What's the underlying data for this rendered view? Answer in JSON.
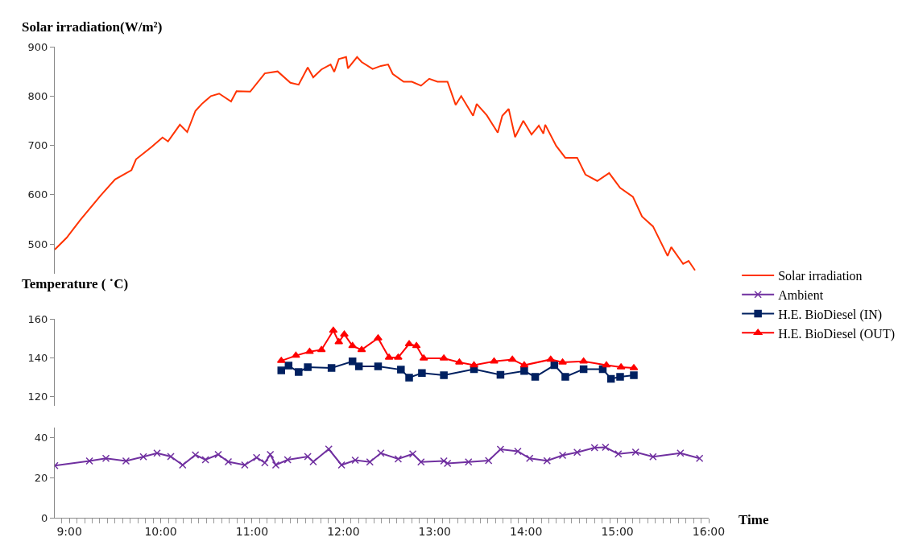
{
  "chart_data": [
    {
      "type": "line",
      "ylabel": "Solar irradiation(W/m²)",
      "xlim": [
        8.84,
        16
      ],
      "ylim": [
        440,
        900
      ],
      "yticks": [
        500,
        600,
        700,
        800,
        900
      ],
      "tick_labels": "y",
      "legend": "right",
      "series": [
        {
          "name": "Solar irradiation",
          "color": "#ff3300",
          "marker": "none",
          "x": [
            8.84,
            8.97,
            9.12,
            9.34,
            9.5,
            9.68,
            9.73,
            9.9,
            10.02,
            10.08,
            10.21,
            10.29,
            10.38,
            10.45,
            10.55,
            10.64,
            10.77,
            10.83,
            10.98,
            11.14,
            11.28,
            11.42,
            11.51,
            11.61,
            11.67,
            11.76,
            11.86,
            11.9,
            11.95,
            12.03,
            12.05,
            12.15,
            12.2,
            12.32,
            12.41,
            12.49,
            12.54,
            12.66,
            12.75,
            12.85,
            12.94,
            13.03,
            13.14,
            13.23,
            13.29,
            13.42,
            13.46,
            13.57,
            13.69,
            13.74,
            13.81,
            13.88,
            13.97,
            14.06,
            14.14,
            14.19,
            14.21,
            14.33,
            14.43,
            14.56,
            14.65,
            14.78,
            14.91,
            15.03,
            15.17,
            15.27,
            15.39,
            15.55,
            15.59,
            15.72,
            15.78,
            15.85
          ],
          "values": [
            489,
            513,
            549,
            598,
            631,
            650,
            672,
            697,
            716,
            708,
            742,
            727,
            770,
            784,
            800,
            805,
            789,
            810,
            809,
            846,
            850,
            827,
            823,
            858,
            838,
            854,
            864,
            849,
            875,
            879,
            856,
            879,
            869,
            855,
            861,
            864,
            845,
            829,
            829,
            821,
            835,
            829,
            829,
            782,
            800,
            760,
            784,
            761,
            726,
            760,
            774,
            717,
            750,
            722,
            740,
            724,
            742,
            699,
            675,
            675,
            641,
            628,
            644,
            614,
            596,
            556,
            536,
            476,
            494,
            460,
            466,
            447
          ]
        }
      ]
    },
    {
      "type": "line",
      "ylabel": "Temperature ( ˙C)",
      "xlim": [
        8.84,
        16
      ],
      "ylim": [
        115,
        160
      ],
      "yticks": [
        120,
        140,
        160
      ],
      "tick_labels": "y",
      "legend": "right",
      "series": [
        {
          "name": "H.E. BioDiesel (IN)",
          "color": "#002060",
          "marker": "square",
          "x": [
            11.32,
            11.4,
            11.51,
            11.61,
            11.87,
            12.1,
            12.17,
            12.38,
            12.63,
            12.72,
            12.86,
            13.1,
            13.43,
            13.72,
            13.98,
            14.1,
            14.31,
            14.43,
            14.63,
            14.84,
            14.93,
            15.03,
            15.18
          ],
          "values": [
            133.3,
            135.8,
            132.5,
            135,
            134.6,
            138,
            135.4,
            135.4,
            133.7,
            129.6,
            132,
            130.8,
            134,
            131,
            133,
            130,
            136,
            130,
            134,
            134,
            129,
            130,
            130.8
          ]
        },
        {
          "name": "H.E. BioDiesel (OUT)",
          "color": "#ff0000",
          "marker": "triangle",
          "x": [
            11.32,
            11.48,
            11.63,
            11.76,
            11.89,
            11.95,
            12.01,
            12.1,
            12.2,
            12.38,
            12.5,
            12.6,
            12.72,
            12.8,
            12.88,
            13.1,
            13.27,
            13.43,
            13.65,
            13.85,
            13.98,
            14.27,
            14.4,
            14.63,
            14.88,
            15.04,
            15.18
          ],
          "values": [
            138.3,
            141,
            143,
            144,
            154,
            148,
            152,
            146,
            144,
            150,
            140,
            140,
            147,
            146,
            139.6,
            139.6,
            137.5,
            136,
            138,
            139,
            136,
            139,
            137.5,
            138,
            136,
            135,
            134.6
          ]
        }
      ]
    },
    {
      "type": "line",
      "xlabel": "Time",
      "xlim": [
        8.84,
        16
      ],
      "xticks": [
        {
          "value": 9,
          "label": "9:00"
        },
        {
          "value": 10,
          "label": "10:00"
        },
        {
          "value": 11,
          "label": "11:00"
        },
        {
          "value": 12,
          "label": "12:00"
        },
        {
          "value": 13,
          "label": "13:00"
        },
        {
          "value": 14,
          "label": "14:00"
        },
        {
          "value": 15,
          "label": "15:00"
        },
        {
          "value": 16,
          "label": "16:00"
        }
      ],
      "ylim": [
        0,
        45
      ],
      "yticks": [
        0,
        20,
        40
      ],
      "legend": "right",
      "series": [
        {
          "name": "Ambient",
          "color": "#7030a0",
          "marker": "cross",
          "x": [
            8.84,
            9.22,
            9.4,
            9.62,
            9.81,
            9.96,
            10.11,
            10.24,
            10.38,
            10.49,
            10.63,
            10.74,
            10.92,
            11.05,
            11.14,
            11.2,
            11.26,
            11.39,
            11.61,
            11.67,
            11.84,
            11.98,
            12.13,
            12.29,
            12.41,
            12.6,
            12.76,
            12.85,
            13.1,
            13.14,
            13.37,
            13.59,
            13.72,
            13.91,
            14.04,
            14.23,
            14.4,
            14.56,
            14.75,
            14.87,
            15.01,
            15.2,
            15.39,
            15.69,
            15.9
          ],
          "values": [
            25.9,
            28.2,
            29.5,
            28.2,
            30.3,
            32.1,
            30.4,
            26.2,
            31.2,
            28.8,
            31.4,
            27.8,
            26.2,
            29.9,
            27.3,
            31.4,
            26.2,
            28.8,
            30.4,
            27.8,
            34.1,
            26.2,
            28.6,
            27.7,
            32.1,
            29.2,
            31.7,
            27.7,
            28.2,
            27,
            27.7,
            28.4,
            34,
            33,
            29.5,
            28.3,
            31,
            32.5,
            34.8,
            35,
            31.7,
            32.6,
            30.3,
            32.1,
            29.5
          ]
        }
      ]
    }
  ]
}
